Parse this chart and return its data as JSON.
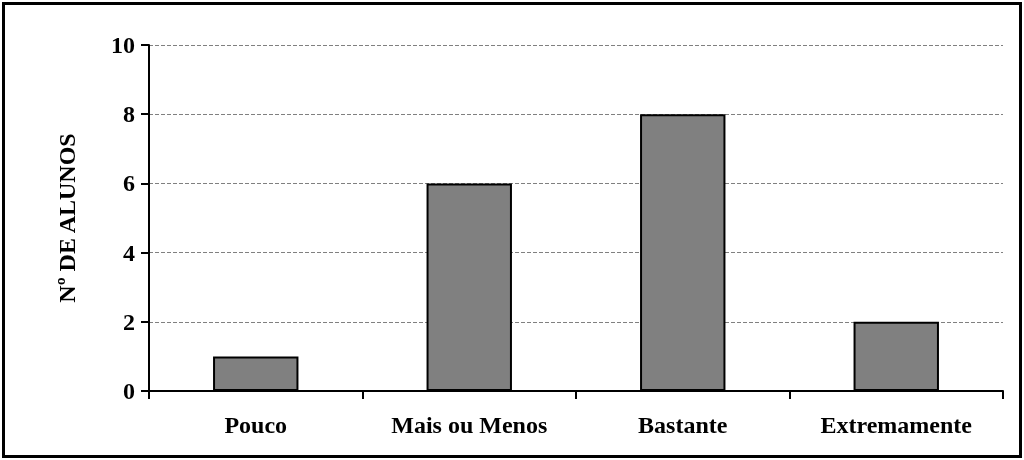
{
  "chart_data": {
    "type": "bar",
    "ylabel": "Nº DE ALUNOS",
    "categories": [
      "Pouco",
      "Mais ou Menos",
      "Bastante",
      "Extremamente"
    ],
    "values": [
      1,
      6,
      8,
      2
    ],
    "color": "#808080",
    "ylim": [
      0,
      10
    ],
    "yticks": [
      0,
      2,
      4,
      6,
      8,
      10
    ],
    "grid": "y"
  }
}
